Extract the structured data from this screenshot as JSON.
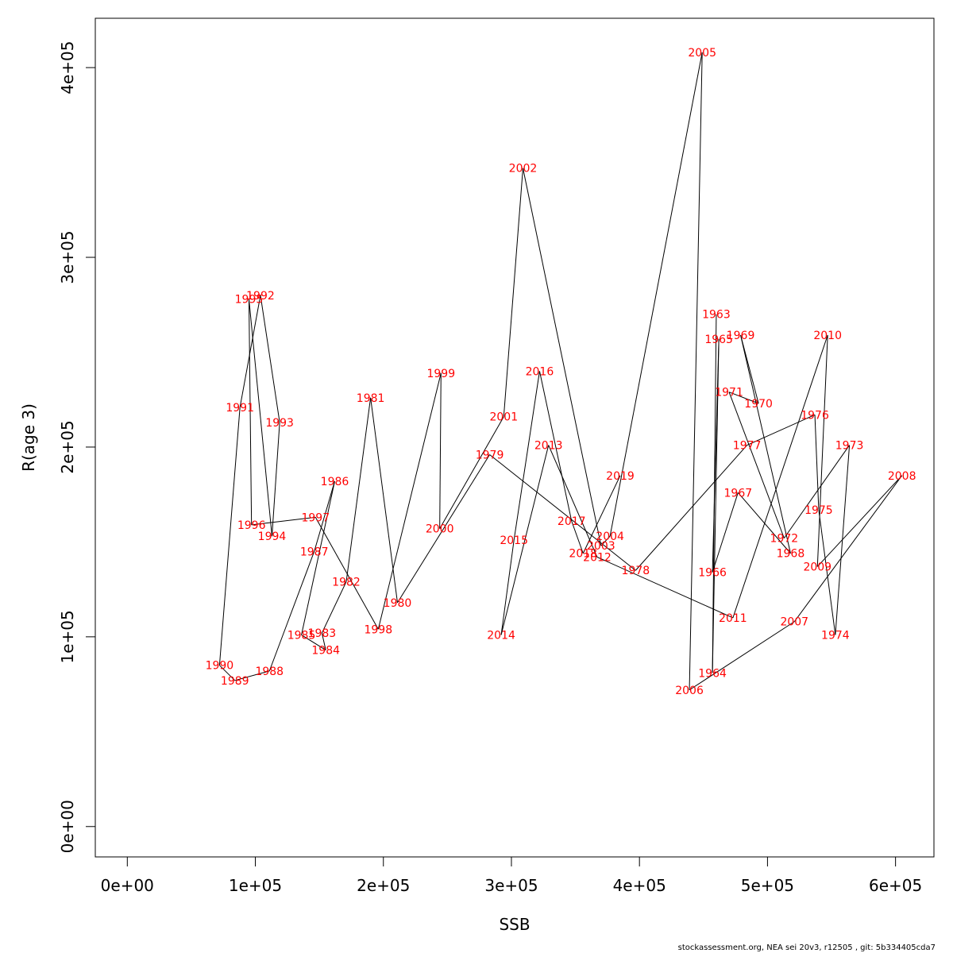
{
  "chart_data": {
    "type": "line",
    "xlabel": "SSB",
    "ylabel": "R(age 3)",
    "xlim": [
      -25000,
      630000
    ],
    "ylim": [
      -16000,
      426000
    ],
    "x_ticks": [
      {
        "value": 0,
        "label": "0e+00"
      },
      {
        "value": 100000,
        "label": "1e+05"
      },
      {
        "value": 200000,
        "label": "2e+05"
      },
      {
        "value": 300000,
        "label": "3e+05"
      },
      {
        "value": 400000,
        "label": "4e+05"
      },
      {
        "value": 500000,
        "label": "5e+05"
      },
      {
        "value": 600000,
        "label": "6e+05"
      }
    ],
    "y_ticks": [
      {
        "value": 0,
        "label": "0e+00"
      },
      {
        "value": 100000,
        "label": "1e+05"
      },
      {
        "value": 200000,
        "label": "2e+05"
      },
      {
        "value": 300000,
        "label": "3e+05"
      },
      {
        "value": 400000,
        "label": "4e+05"
      }
    ],
    "series": [
      {
        "color": "#ff0000",
        "line_color": "#000000",
        "points": [
          {
            "year": "1963",
            "x": 460000,
            "y": 270000
          },
          {
            "year": "1964",
            "x": 457000,
            "y": 81000
          },
          {
            "year": "1965",
            "x": 462000,
            "y": 257000
          },
          {
            "year": "1966",
            "x": 457000,
            "y": 134000
          },
          {
            "year": "1967",
            "x": 477000,
            "y": 176000
          },
          {
            "year": "1968",
            "x": 518000,
            "y": 144000
          },
          {
            "year": "1969",
            "x": 479000,
            "y": 259000
          },
          {
            "year": "1970",
            "x": 493000,
            "y": 223000
          },
          {
            "year": "1971",
            "x": 470000,
            "y": 229000
          },
          {
            "year": "1972",
            "x": 513000,
            "y": 152000
          },
          {
            "year": "1973",
            "x": 564000,
            "y": 201000
          },
          {
            "year": "1974",
            "x": 553000,
            "y": 101000
          },
          {
            "year": "1975",
            "x": 540000,
            "y": 167000
          },
          {
            "year": "1976",
            "x": 537000,
            "y": 217000
          },
          {
            "year": "1977",
            "x": 484000,
            "y": 201000
          },
          {
            "year": "1978",
            "x": 397000,
            "y": 135000
          },
          {
            "year": "1979",
            "x": 283000,
            "y": 196000
          },
          {
            "year": "1980",
            "x": 211000,
            "y": 118000
          },
          {
            "year": "1981",
            "x": 190000,
            "y": 226000
          },
          {
            "year": "1982",
            "x": 171000,
            "y": 129000
          },
          {
            "year": "1983",
            "x": 152000,
            "y": 102000
          },
          {
            "year": "1984",
            "x": 155000,
            "y": 93000
          },
          {
            "year": "1985",
            "x": 136000,
            "y": 101000
          },
          {
            "year": "1986",
            "x": 162000,
            "y": 182000
          },
          {
            "year": "1987",
            "x": 146000,
            "y": 145000
          },
          {
            "year": "1988",
            "x": 111000,
            "y": 82000
          },
          {
            "year": "1989",
            "x": 84000,
            "y": 77000
          },
          {
            "year": "1990",
            "x": 72000,
            "y": 85000
          },
          {
            "year": "1991",
            "x": 88000,
            "y": 221000
          },
          {
            "year": "1992",
            "x": 104000,
            "y": 280000
          },
          {
            "year": "1993",
            "x": 119000,
            "y": 213000
          },
          {
            "year": "1994",
            "x": 113000,
            "y": 153000
          },
          {
            "year": "1995",
            "x": 95000,
            "y": 278000
          },
          {
            "year": "1996",
            "x": 97000,
            "y": 159000
          },
          {
            "year": "1997",
            "x": 147000,
            "y": 163000
          },
          {
            "year": "1998",
            "x": 196000,
            "y": 104000
          },
          {
            "year": "1999",
            "x": 245000,
            "y": 239000
          },
          {
            "year": "2000",
            "x": 244000,
            "y": 157000
          },
          {
            "year": "2001",
            "x": 294000,
            "y": 216000
          },
          {
            "year": "2002",
            "x": 309000,
            "y": 347000
          },
          {
            "year": "2003",
            "x": 370000,
            "y": 148000
          },
          {
            "year": "2004",
            "x": 377000,
            "y": 153000
          },
          {
            "year": "2005",
            "x": 449000,
            "y": 408000
          },
          {
            "year": "2006",
            "x": 439000,
            "y": 72000
          },
          {
            "year": "2007",
            "x": 521000,
            "y": 108000
          },
          {
            "year": "2008",
            "x": 605000,
            "y": 185000
          },
          {
            "year": "2009",
            "x": 539000,
            "y": 137000
          },
          {
            "year": "2010",
            "x": 547000,
            "y": 259000
          },
          {
            "year": "2011",
            "x": 473000,
            "y": 110000
          },
          {
            "year": "2012",
            "x": 367000,
            "y": 142000
          },
          {
            "year": "2013",
            "x": 329000,
            "y": 201000
          },
          {
            "year": "2014",
            "x": 292000,
            "y": 101000
          },
          {
            "year": "2015",
            "x": 302000,
            "y": 151000
          },
          {
            "year": "2016",
            "x": 322000,
            "y": 240000
          },
          {
            "year": "2017",
            "x": 347000,
            "y": 161000
          },
          {
            "year": "2018",
            "x": 356000,
            "y": 144000
          },
          {
            "year": "2019",
            "x": 385000,
            "y": 185000
          }
        ]
      }
    ]
  },
  "footer": "stockassessment.org, NEA  sei  20v3, r12505 , git: 5b334405cda7"
}
